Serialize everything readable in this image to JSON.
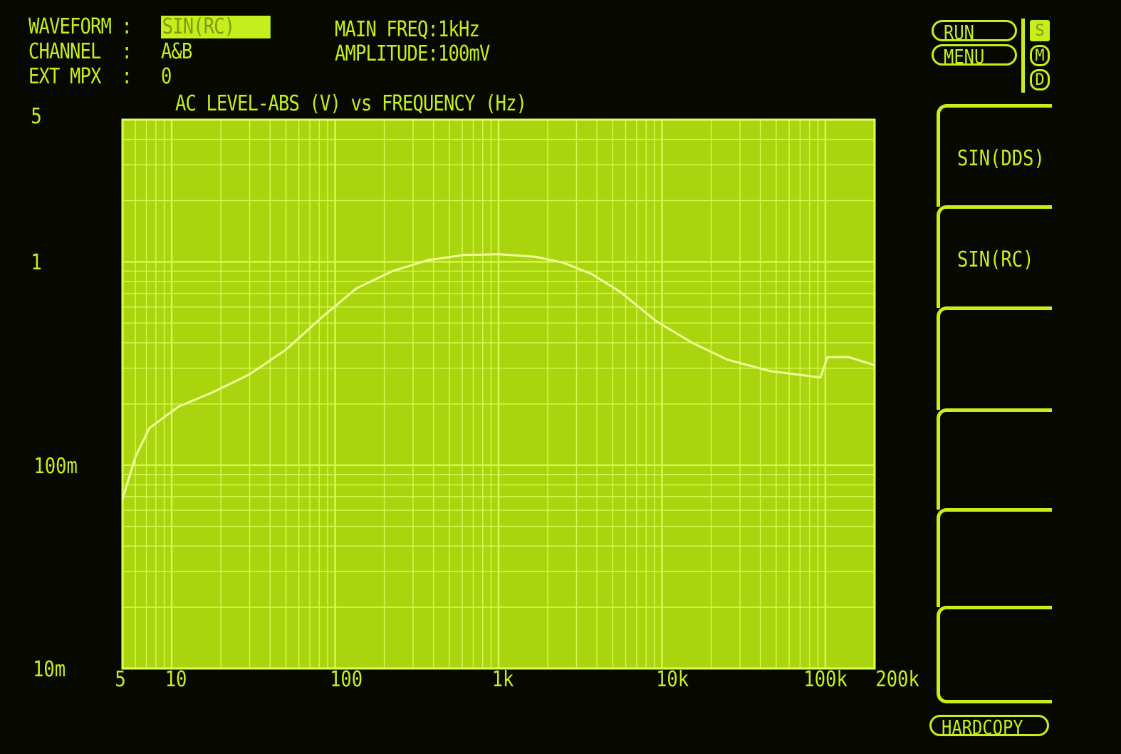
{
  "header": {
    "waveform_label": "WAVEFORM :",
    "waveform_value": "SIN(RC)",
    "channel_label": "CHANNEL  :",
    "channel_value": "A&B",
    "ext_mpx_label": "EXT MPX  :",
    "ext_mpx_value": "0",
    "main_freq": "MAIN FREQ:1kHz",
    "amplitude": "AMPLITUDE:100mV"
  },
  "controls": {
    "run": "RUN",
    "menu": "MENU",
    "modes": [
      "S",
      "M",
      "D"
    ],
    "active_mode": "S",
    "hardcopy": "HARDCOPY"
  },
  "softkeys": [
    "SIN(DDS)",
    "SIN(RC)",
    "",
    "",
    "",
    ""
  ],
  "colors": {
    "phosphor": "#c6ee1c",
    "plot_fill": "#a9d40e",
    "grid": "#dcff5a",
    "trace": "#f2ff9a",
    "background": "#070800"
  },
  "chart_data": {
    "type": "line",
    "title": "AC LEVEL-ABS (V) vs FREQUENCY (Hz)",
    "x_scale": "log",
    "y_scale": "log",
    "xlim": [
      5,
      200000
    ],
    "ylim": [
      0.01,
      5
    ],
    "grid": true,
    "x_ticks": [
      {
        "value": 5,
        "label": "5"
      },
      {
        "value": 10,
        "label": "10"
      },
      {
        "value": 100,
        "label": "100"
      },
      {
        "value": 1000,
        "label": "1k"
      },
      {
        "value": 10000,
        "label": "10k"
      },
      {
        "value": 100000,
        "label": "100k"
      },
      {
        "value": 200000,
        "label": "200k"
      }
    ],
    "y_ticks": [
      {
        "value": 5,
        "label": "5"
      },
      {
        "value": 1,
        "label": "1"
      },
      {
        "value": 0.1,
        "label": "100m"
      },
      {
        "value": 0.01,
        "label": "10m"
      }
    ],
    "series": [
      {
        "x": [
          5,
          6,
          7.3,
          11,
          18,
          30,
          50,
          82,
          135,
          224,
          370,
          611,
          1010,
          1670,
          2500,
          3730,
          5580,
          9230,
          15300,
          25200,
          46100,
          93300,
          103000,
          139000,
          200000
        ],
        "y": [
          0.068,
          0.11,
          0.152,
          0.194,
          0.229,
          0.28,
          0.37,
          0.53,
          0.74,
          0.9,
          1.02,
          1.08,
          1.09,
          1.06,
          0.99,
          0.87,
          0.71,
          0.51,
          0.4,
          0.33,
          0.29,
          0.27,
          0.34,
          0.34,
          0.31
        ]
      }
    ]
  }
}
